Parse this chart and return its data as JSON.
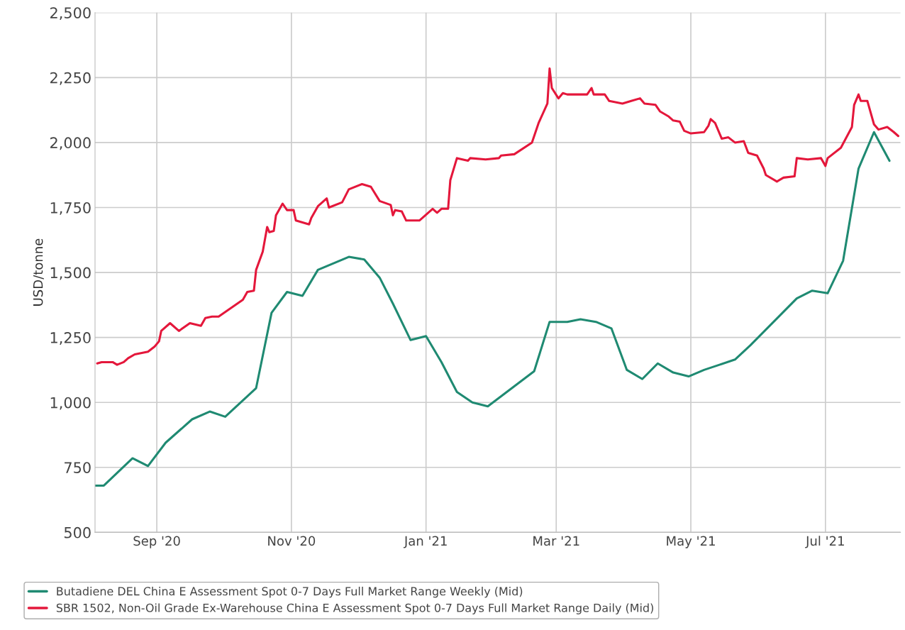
{
  "chart_data": {
    "type": "line",
    "ylabel": "USD/tonne",
    "legend": "bottom",
    "grid": true,
    "marker": "none",
    "line_style": "solid",
    "xlim": [
      "2020-08-04",
      "2021-08-04"
    ],
    "xticks": [
      {
        "value": "2020-09-01",
        "label": "Sep '20"
      },
      {
        "value": "2020-11-01",
        "label": "Nov '20"
      },
      {
        "value": "2021-01-01",
        "label": "Jan '21"
      },
      {
        "value": "2021-03-01",
        "label": "Mar '21"
      },
      {
        "value": "2021-05-01",
        "label": "May '21"
      },
      {
        "value": "2021-07-01",
        "label": "Jul '21"
      }
    ],
    "ylim": [
      500,
      2500
    ],
    "yticks": [
      {
        "value": 500,
        "label": "500"
      },
      {
        "value": 750,
        "label": "750"
      },
      {
        "value": 1000,
        "label": "1,000"
      },
      {
        "value": 1250,
        "label": "1,250"
      },
      {
        "value": 1500,
        "label": "1,500"
      },
      {
        "value": 1750,
        "label": "1,750"
      },
      {
        "value": 2000,
        "label": "2,000"
      },
      {
        "value": 2250,
        "label": "2,250"
      },
      {
        "value": 2500,
        "label": "2,500"
      }
    ],
    "series": [
      {
        "name": "Butadiene DEL China E Assessment Spot 0-7 Days Full Market Range Weekly (Mid)",
        "color": "#1f8a72",
        "x": [
          "2020-08-04",
          "2020-08-08",
          "2020-08-21",
          "2020-08-28",
          "2020-09-05",
          "2020-09-17",
          "2020-09-25",
          "2020-10-02",
          "2020-10-16",
          "2020-10-23",
          "2020-10-30",
          "2020-11-06",
          "2020-11-13",
          "2020-11-27",
          "2020-12-04",
          "2020-12-11",
          "2020-12-17",
          "2020-12-25",
          "2021-01-01",
          "2021-01-08",
          "2021-01-15",
          "2021-01-22",
          "2021-01-29",
          "2021-02-05",
          "2021-02-19",
          "2021-02-26",
          "2021-03-06",
          "2021-03-12",
          "2021-03-19",
          "2021-03-26",
          "2021-04-02",
          "2021-04-09",
          "2021-04-16",
          "2021-04-23",
          "2021-04-30",
          "2021-05-07",
          "2021-05-14",
          "2021-05-21",
          "2021-05-28",
          "2021-06-04",
          "2021-06-11",
          "2021-06-18",
          "2021-06-25",
          "2021-07-02",
          "2021-07-09",
          "2021-07-16",
          "2021-07-23",
          "2021-07-30"
        ],
        "values": [
          680,
          680,
          785,
          755,
          845,
          935,
          965,
          945,
          1055,
          1345,
          1425,
          1410,
          1510,
          1560,
          1550,
          1480,
          1380,
          1240,
          1255,
          1155,
          1040,
          1000,
          985,
          1030,
          1120,
          1310,
          1310,
          1320,
          1310,
          1285,
          1125,
          1090,
          1150,
          1115,
          1100,
          1125,
          1145,
          1165,
          1220,
          1280,
          1340,
          1400,
          1430,
          1420,
          1545,
          1900,
          2040,
          1930
        ]
      },
      {
        "name": "SBR 1502, Non-Oil Grade Ex-Warehouse China E Assessment Spot 0-7 Days Full Market Range Daily (Mid)",
        "color": "#e4173b",
        "x": [
          "2020-08-05",
          "2020-08-07",
          "2020-08-12",
          "2020-08-14",
          "2020-08-17",
          "2020-08-19",
          "2020-08-22",
          "2020-08-28",
          "2020-08-31",
          "2020-09-02",
          "2020-09-03",
          "2020-09-07",
          "2020-09-11",
          "2020-09-16",
          "2020-09-21",
          "2020-09-23",
          "2020-09-26",
          "2020-09-29",
          "2020-10-10",
          "2020-10-12",
          "2020-10-15",
          "2020-10-16",
          "2020-10-19",
          "2020-10-21",
          "2020-10-22",
          "2020-10-24",
          "2020-10-25",
          "2020-10-28",
          "2020-10-30",
          "2020-11-02",
          "2020-11-03",
          "2020-11-09",
          "2020-11-10",
          "2020-11-13",
          "2020-11-17",
          "2020-11-18",
          "2020-11-24",
          "2020-11-27",
          "2020-12-03",
          "2020-12-07",
          "2020-12-11",
          "2020-12-16",
          "2020-12-17",
          "2020-12-18",
          "2020-12-21",
          "2020-12-23",
          "2020-12-29",
          "2020-12-31",
          "2021-01-04",
          "2021-01-06",
          "2021-01-08",
          "2021-01-11",
          "2021-01-12",
          "2021-01-15",
          "2021-01-20",
          "2021-01-21",
          "2021-01-28",
          "2021-02-03",
          "2021-02-04",
          "2021-02-10",
          "2021-02-18",
          "2021-02-21",
          "2021-02-25",
          "2021-02-26",
          "2021-02-27",
          "2021-03-02",
          "2021-03-04",
          "2021-03-06",
          "2021-03-15",
          "2021-03-17",
          "2021-03-18",
          "2021-03-23",
          "2021-03-25",
          "2021-03-31",
          "2021-04-04",
          "2021-04-08",
          "2021-04-10",
          "2021-04-15",
          "2021-04-17",
          "2021-04-21",
          "2021-04-23",
          "2021-04-26",
          "2021-04-28",
          "2021-05-01",
          "2021-05-07",
          "2021-05-09",
          "2021-05-10",
          "2021-05-12",
          "2021-05-15",
          "2021-05-18",
          "2021-05-21",
          "2021-05-25",
          "2021-05-27",
          "2021-05-31",
          "2021-06-03",
          "2021-06-04",
          "2021-06-09",
          "2021-06-12",
          "2021-06-17",
          "2021-06-18",
          "2021-06-23",
          "2021-06-29",
          "2021-07-01",
          "2021-07-02",
          "2021-07-08",
          "2021-07-13",
          "2021-07-14",
          "2021-07-16",
          "2021-07-17",
          "2021-07-20",
          "2021-07-23",
          "2021-07-25",
          "2021-07-29",
          "2021-08-01",
          "2021-08-03"
        ],
        "values": [
          1150,
          1155,
          1155,
          1145,
          1155,
          1170,
          1185,
          1195,
          1215,
          1235,
          1275,
          1305,
          1275,
          1305,
          1295,
          1325,
          1330,
          1330,
          1395,
          1425,
          1430,
          1510,
          1580,
          1675,
          1655,
          1660,
          1720,
          1765,
          1740,
          1740,
          1700,
          1685,
          1710,
          1755,
          1785,
          1750,
          1770,
          1820,
          1840,
          1830,
          1775,
          1760,
          1720,
          1740,
          1735,
          1700,
          1700,
          1715,
          1745,
          1730,
          1745,
          1745,
          1855,
          1940,
          1930,
          1940,
          1935,
          1940,
          1950,
          1955,
          2000,
          2075,
          2150,
          2285,
          2210,
          2170,
          2190,
          2185,
          2185,
          2210,
          2185,
          2185,
          2160,
          2150,
          2160,
          2170,
          2150,
          2145,
          2120,
          2100,
          2085,
          2080,
          2045,
          2035,
          2040,
          2065,
          2090,
          2075,
          2015,
          2020,
          2000,
          2005,
          1960,
          1950,
          1900,
          1875,
          1850,
          1865,
          1870,
          1940,
          1935,
          1940,
          1910,
          1940,
          1980,
          2060,
          2145,
          2185,
          2160,
          2160,
          2070,
          2050,
          2060,
          2040,
          2025
        ]
      }
    ]
  }
}
